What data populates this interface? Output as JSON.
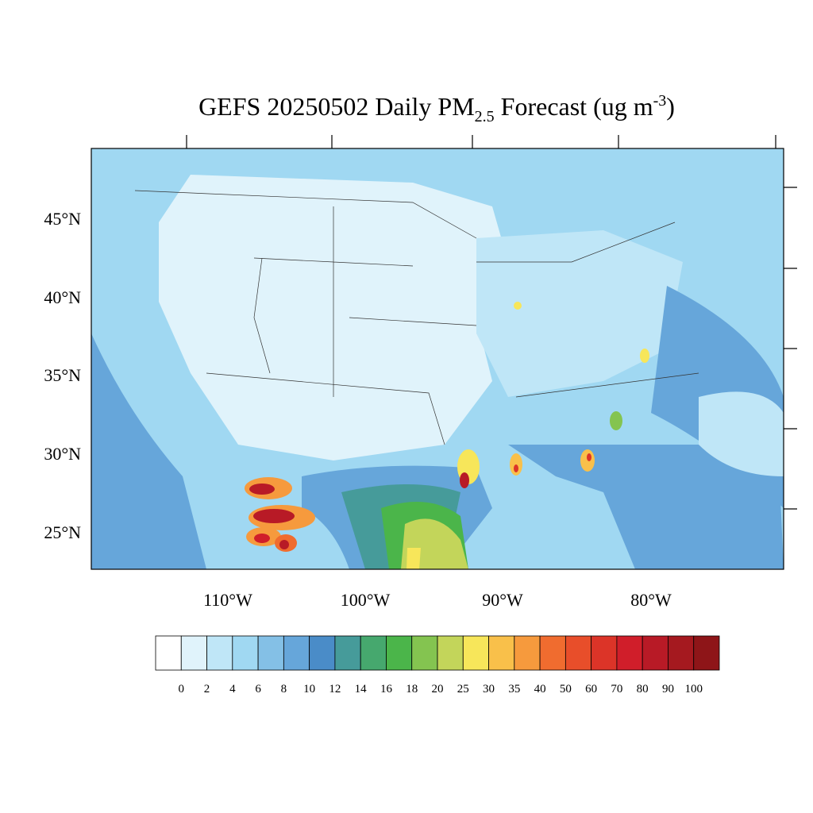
{
  "title": {
    "main": "GEFS 20250502 Daily PM",
    "subscript": "2.5",
    "rest": " Forecast (ug m",
    "superscript": "-3",
    "end": ")"
  },
  "map": {
    "lat_labels": [
      "45°N",
      "40°N",
      "35°N",
      "30°N",
      "25°N"
    ],
    "lon_labels": [
      "110°W",
      "100°W",
      "90°W",
      "80°W"
    ]
  },
  "colorbar": {
    "levels": [
      0,
      2,
      4,
      6,
      8,
      10,
      12,
      14,
      16,
      18,
      20,
      25,
      30,
      35,
      40,
      50,
      60,
      70,
      80,
      90,
      100
    ],
    "colors": [
      "#ffffff",
      "#e0f3fb",
      "#bfe6f7",
      "#a0d8f2",
      "#84c0e6",
      "#66a6da",
      "#4a8cc8",
      "#469b9a",
      "#46a86e",
      "#4bb54a",
      "#84c450",
      "#c3d55a",
      "#f7e65a",
      "#f9c04a",
      "#f69a3d",
      "#f06c2f",
      "#e84e2a",
      "#dc3428",
      "#d01e2a",
      "#b81a26",
      "#a5191f",
      "#8e1518"
    ]
  }
}
